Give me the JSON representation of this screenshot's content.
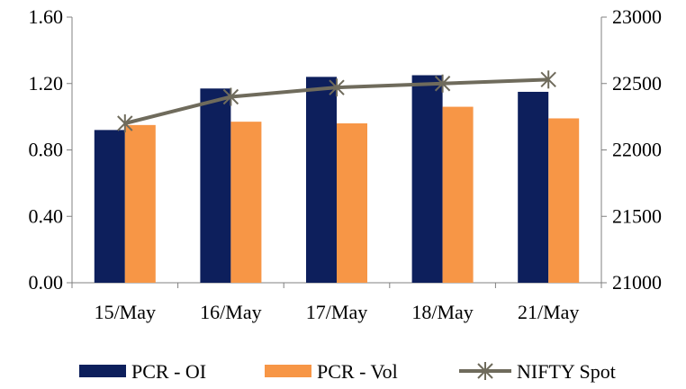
{
  "chart_data": {
    "type": "bar",
    "categories": [
      "15/May",
      "16/May",
      "17/May",
      "18/May",
      "21/May"
    ],
    "series": [
      {
        "name": "PCR - OI",
        "kind": "bar",
        "axis": "left",
        "color": "#0d1f5c",
        "values": [
          0.92,
          1.17,
          1.24,
          1.25,
          1.15
        ]
      },
      {
        "name": "PCR - Vol",
        "kind": "bar",
        "axis": "left",
        "color": "#f79646",
        "values": [
          0.95,
          0.97,
          0.96,
          1.06,
          0.99
        ]
      },
      {
        "name": "NIFTY Spot",
        "kind": "line",
        "axis": "right",
        "color": "#6f6b5c",
        "marker": "star-cross",
        "values": [
          22200,
          22400,
          22470,
          22500,
          22530
        ]
      }
    ],
    "left_axis": {
      "min": 0,
      "max": 1.6,
      "ticks": [
        "0.00",
        "0.40",
        "0.80",
        "1.20",
        "1.60"
      ]
    },
    "right_axis": {
      "min": 21000,
      "max": 23000,
      "ticks": [
        "21000",
        "21500",
        "22000",
        "22500",
        "23000"
      ]
    },
    "grid": false,
    "legend": "bottom",
    "title": "",
    "xlabel": "",
    "ylabel": ""
  }
}
